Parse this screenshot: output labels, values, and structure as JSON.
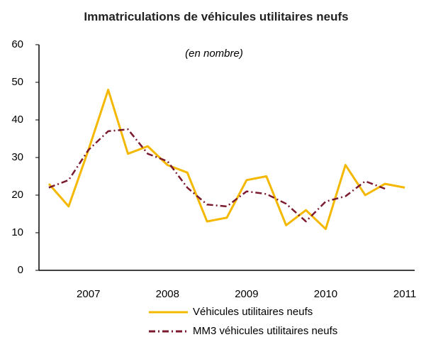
{
  "chart_data": {
    "type": "line",
    "title": "Immatriculations de véhicules utilitaires neufs",
    "subtitle": "(en nombre)",
    "categories": [
      null,
      null,
      "2007",
      null,
      null,
      null,
      "2008",
      null,
      null,
      null,
      "2009",
      null,
      null,
      null,
      "2010",
      null,
      null,
      null,
      "2011"
    ],
    "series": [
      {
        "name": "Véhicules utilitaires neufs",
        "color": "#f5b800",
        "style": "solid",
        "values": [
          23,
          17,
          32,
          48,
          31,
          33,
          28,
          26,
          13,
          14,
          24,
          25,
          12,
          16,
          11,
          28,
          20,
          23,
          22
        ]
      },
      {
        "name": "MM3 véhicules utilitaires neufs",
        "color": "#7b1a2e",
        "style": "dashdot",
        "values": [
          22,
          24,
          32,
          37,
          37.5,
          31,
          29,
          22,
          17.5,
          17,
          21,
          20.3,
          17.7,
          13,
          18.3,
          19.7,
          23.7,
          21.7,
          null
        ]
      }
    ],
    "ylim": [
      0,
      60
    ],
    "yticks": [
      0,
      10,
      20,
      30,
      40,
      50,
      60
    ],
    "grid": false
  }
}
